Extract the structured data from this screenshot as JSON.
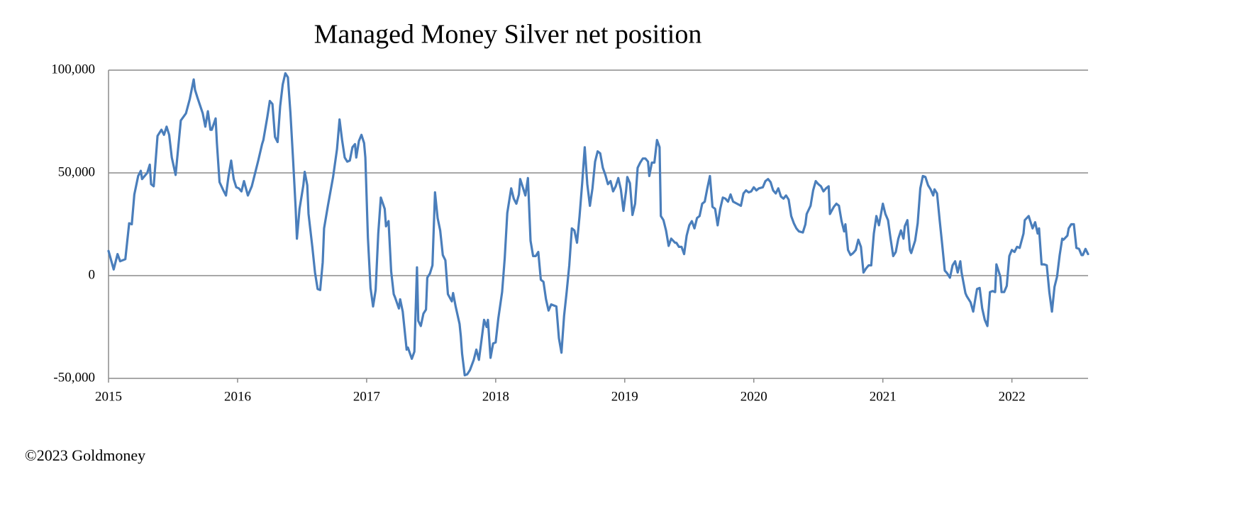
{
  "chart_data": {
    "type": "line",
    "title": "Managed Money Silver net position",
    "footer": "©2023 Goldmoney",
    "color": "#4a7ebb",
    "grid": true,
    "xlim": [
      2015,
      2022.59
    ],
    "xticks": [
      2015,
      2016,
      2017,
      2018,
      2019,
      2020,
      2021,
      2022
    ],
    "ylim": [
      -50000,
      100000
    ],
    "yticks": [
      {
        "value": -50000,
        "label": "-50,000"
      },
      0,
      {
        "value": 50000,
        "label": "50,000"
      },
      {
        "value": 100000,
        "label": "100,000"
      }
    ],
    "x": [
      2015.0,
      2015.04,
      2015.07,
      2015.09,
      2015.13,
      2015.16,
      2015.18,
      2015.2,
      2015.23,
      2015.25,
      2015.26,
      2015.3,
      2015.32,
      2015.33,
      2015.35,
      2015.38,
      2015.41,
      2015.43,
      2015.45,
      2015.47,
      2015.49,
      2015.52,
      2015.56,
      2015.6,
      2015.63,
      2015.66,
      2015.67,
      2015.69,
      2015.73,
      2015.75,
      2015.77,
      2015.79,
      2015.8,
      2015.83,
      2015.84,
      2015.86,
      2015.89,
      2015.91,
      2015.93,
      2015.95,
      2015.97,
      2015.99,
      2016.01,
      2016.03,
      2016.05,
      2016.08,
      2016.11,
      2016.16,
      2016.19,
      2016.2,
      2016.23,
      2016.25,
      2016.27,
      2016.29,
      2016.31,
      2016.33,
      2016.35,
      2016.37,
      2016.39,
      2016.41,
      2016.43,
      2016.45,
      2016.46,
      2016.48,
      2016.51,
      2016.52,
      2016.54,
      2016.55,
      2016.58,
      2016.6,
      2016.62,
      2016.64,
      2016.66,
      2016.67,
      2016.7,
      2016.74,
      2016.77,
      2016.79,
      2016.81,
      2016.83,
      2016.85,
      2016.87,
      2016.89,
      2016.91,
      2016.92,
      2016.94,
      2016.96,
      2016.98,
      2016.99,
      2017.01,
      2017.03,
      2017.05,
      2017.07,
      2017.09,
      2017.11,
      2017.14,
      2017.15,
      2017.17,
      2017.19,
      2017.21,
      2017.22,
      2017.25,
      2017.26,
      2017.28,
      2017.31,
      2017.32,
      2017.35,
      2017.37,
      2017.39,
      2017.4,
      2017.42,
      2017.44,
      2017.46,
      2017.47,
      2017.49,
      2017.51,
      2017.53,
      2017.55,
      2017.57,
      2017.59,
      2017.61,
      2017.63,
      2017.66,
      2017.67,
      2017.69,
      2017.72,
      2017.73,
      2017.74,
      2017.76,
      2017.78,
      2017.8,
      2017.83,
      2017.85,
      2017.87,
      2017.89,
      2017.91,
      2017.93,
      2017.94,
      2017.96,
      2017.98,
      2018.0,
      2018.02,
      2018.05,
      2018.07,
      2018.09,
      2018.12,
      2018.14,
      2018.16,
      2018.18,
      2018.19,
      2018.21,
      2018.23,
      2018.25,
      2018.27,
      2018.29,
      2018.31,
      2018.33,
      2018.35,
      2018.37,
      2018.39,
      2018.41,
      2018.43,
      2018.47,
      2018.49,
      2018.51,
      2018.53,
      2018.55,
      2018.57,
      2018.59,
      2018.61,
      2018.63,
      2018.65,
      2018.67,
      2018.69,
      2018.71,
      2018.73,
      2018.75,
      2018.77,
      2018.79,
      2018.81,
      2018.83,
      2018.85,
      2018.87,
      2018.89,
      2018.91,
      2018.93,
      2018.95,
      2018.97,
      2018.99,
      2019.01,
      2019.02,
      2019.04,
      2019.06,
      2019.08,
      2019.1,
      2019.12,
      2019.14,
      2019.16,
      2019.18,
      2019.19,
      2019.21,
      2019.23,
      2019.25,
      2019.27,
      2019.28,
      2019.3,
      2019.32,
      2019.34,
      2019.36,
      2019.39,
      2019.4,
      2019.42,
      2019.44,
      2019.46,
      2019.48,
      2019.5,
      2019.52,
      2019.54,
      2019.56,
      2019.58,
      2019.6,
      2019.62,
      2019.64,
      2019.66,
      2019.68,
      2019.7,
      2019.72,
      2019.74,
      2019.76,
      2019.78,
      2019.8,
      2019.82,
      2019.84,
      2019.87,
      2019.9,
      2019.92,
      2019.94,
      2019.96,
      2019.98,
      2020.0,
      2020.02,
      2020.04,
      2020.07,
      2020.09,
      2020.11,
      2020.13,
      2020.15,
      2020.17,
      2020.19,
      2020.21,
      2020.23,
      2020.25,
      2020.27,
      2020.29,
      2020.31,
      2020.33,
      2020.35,
      2020.38,
      2020.4,
      2020.41,
      2020.44,
      2020.46,
      2020.48,
      2020.5,
      2020.52,
      2020.54,
      2020.56,
      2020.58,
      2020.59,
      2020.62,
      2020.64,
      2020.66,
      2020.68,
      2020.7,
      2020.71,
      2020.73,
      2020.75,
      2020.77,
      2020.79,
      2020.81,
      2020.83,
      2020.85,
      2020.87,
      2020.89,
      2020.91,
      2020.93,
      2020.95,
      2020.97,
      2021.0,
      2021.02,
      2021.04,
      2021.06,
      2021.08,
      2021.1,
      2021.12,
      2021.14,
      2021.16,
      2021.17,
      2021.19,
      2021.21,
      2021.22,
      2021.25,
      2021.27,
      2021.29,
      2021.31,
      2021.33,
      2021.35,
      2021.37,
      2021.39,
      2021.4,
      2021.42,
      2021.44,
      2021.46,
      2021.48,
      2021.5,
      2021.52,
      2021.54,
      2021.56,
      2021.58,
      2021.6,
      2021.61,
      2021.64,
      2021.65,
      2021.68,
      2021.7,
      2021.72,
      2021.73,
      2021.75,
      2021.77,
      2021.79,
      2021.81,
      2021.83,
      2021.85,
      2021.87,
      2021.88,
      2021.91,
      2021.92,
      2021.94,
      2021.96,
      2021.98,
      2022.0,
      2022.02,
      2022.04,
      2022.06,
      2022.09,
      2022.1,
      2022.13,
      2022.14,
      2022.16,
      2022.18,
      2022.2,
      2022.21,
      2022.23,
      2022.25,
      2022.27,
      2022.29,
      2022.31,
      2022.33,
      2022.35,
      2022.37,
      2022.39,
      2022.4,
      2022.43,
      2022.44,
      2022.46,
      2022.48,
      2022.5,
      2022.52,
      2022.54,
      2022.55,
      2022.57,
      2022.59
    ],
    "values": [
      12000,
      3000,
      10500,
      7000,
      8000,
      25500,
      25000,
      39500,
      48500,
      51000,
      47000,
      50000,
      54000,
      44500,
      43500,
      68000,
      71000,
      68500,
      72500,
      68500,
      57500,
      49000,
      75500,
      79000,
      86000,
      95500,
      90500,
      86500,
      79000,
      72500,
      80000,
      71000,
      71000,
      76500,
      64500,
      45500,
      41500,
      39000,
      48500,
      56000,
      47000,
      43000,
      42500,
      41000,
      46000,
      39000,
      43500,
      56000,
      64000,
      66000,
      77000,
      85000,
      83500,
      67500,
      65000,
      82500,
      93000,
      98500,
      96500,
      79000,
      56500,
      33000,
      18000,
      32500,
      44000,
      50500,
      44000,
      30000,
      13500,
      1500,
      -6500,
      -7000,
      6500,
      23000,
      34000,
      48000,
      61500,
      76000,
      66000,
      57500,
      55500,
      56000,
      62500,
      64000,
      57500,
      65500,
      68500,
      64500,
      57500,
      18500,
      -6000,
      -15000,
      -7000,
      20500,
      38000,
      32500,
      24000,
      26500,
      2000,
      -9000,
      -10500,
      -16000,
      -11500,
      -17500,
      -36000,
      -35000,
      -40500,
      -37000,
      4000,
      -22000,
      -24500,
      -18500,
      -16500,
      -1000,
      1000,
      5000,
      40500,
      28000,
      22000,
      10000,
      7500,
      -9000,
      -12500,
      -8500,
      -15000,
      -23500,
      -29500,
      -38000,
      -48500,
      -48000,
      -46000,
      -41000,
      -36000,
      -41000,
      -31500,
      -21500,
      -25000,
      -21500,
      -40000,
      -33000,
      -32500,
      -21000,
      -8000,
      8500,
      30500,
      42500,
      37500,
      35000,
      39500,
      47000,
      43000,
      39000,
      47500,
      17000,
      9500,
      9500,
      11500,
      -2000,
      -3000,
      -11500,
      -17000,
      -14000,
      -15000,
      -30500,
      -37500,
      -19500,
      -8000,
      5000,
      23000,
      22000,
      16000,
      29000,
      45000,
      62500,
      44500,
      34000,
      42500,
      55500,
      60500,
      59500,
      52500,
      49000,
      44500,
      46000,
      41000,
      43500,
      47500,
      42000,
      31500,
      41000,
      48000,
      45000,
      29500,
      35000,
      52500,
      55000,
      57000,
      57000,
      55500,
      48500,
      55000,
      55000,
      66000,
      62500,
      29000,
      27000,
      22000,
      14500,
      18000,
      16000,
      16000,
      14000,
      14000,
      10500,
      19500,
      24500,
      26500,
      23000,
      28000,
      29000,
      35000,
      36000,
      42500,
      48500,
      33500,
      32500,
      24500,
      32500,
      38000,
      37500,
      36000,
      39500,
      36000,
      35000,
      34000,
      40000,
      41500,
      40500,
      41000,
      43000,
      41500,
      42500,
      43000,
      46000,
      47000,
      45500,
      41500,
      40000,
      42500,
      38500,
      37500,
      39000,
      37000,
      29000,
      25500,
      23000,
      21500,
      21000,
      25000,
      30000,
      34000,
      41500,
      46000,
      44500,
      43500,
      41000,
      42500,
      43500,
      30000,
      33500,
      35000,
      34000,
      26500,
      21500,
      25000,
      12500,
      10000,
      11000,
      12500,
      17500,
      14000,
      1500,
      3500,
      5000,
      5000,
      20500,
      29000,
      24500,
      35000,
      30000,
      27000,
      18000,
      9500,
      11500,
      18000,
      22000,
      18000,
      24000,
      27000,
      12500,
      11000,
      17000,
      25500,
      42500,
      48500,
      48000,
      44000,
      42000,
      39000,
      42000,
      40000,
      27000,
      15000,
      2500,
      1000,
      -1000,
      5000,
      7000,
      1500,
      7000,
      1500,
      -8500,
      -10000,
      -13000,
      -17500,
      -10000,
      -6500,
      -6000,
      -16000,
      -21500,
      -24500,
      -8000,
      -7500,
      -8000,
      5500,
      -500,
      -8000,
      -8000,
      -5000,
      9500,
      12500,
      11500,
      14000,
      13500,
      20500,
      27000,
      29000,
      27000,
      23000,
      26000,
      20500,
      23000,
      5500,
      5500,
      5000,
      -8000,
      -17500,
      -5500,
      -500,
      10000,
      18000,
      17500,
      19500,
      23000,
      25000,
      25000,
      13500,
      13000,
      10000,
      10000,
      13000,
      10500
    ]
  }
}
